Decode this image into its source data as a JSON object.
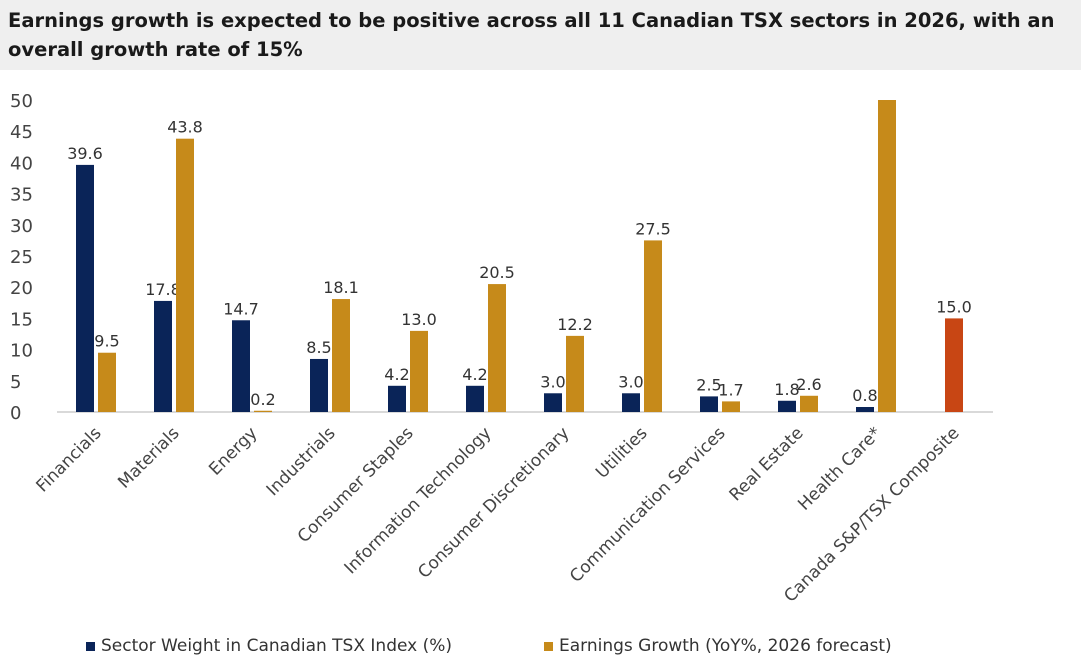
{
  "chart_data": {
    "type": "bar",
    "title": "Earnings growth is expected to be positive across all 11 Canadian TSX sectors in 2026, with an overall growth rate of 15%",
    "categories": [
      "Financials",
      "Materials",
      "Energy",
      "Industrials",
      "Consumer Staples",
      "Information Technology",
      "Consumer Discretionary",
      "Utilities",
      "Communication Services",
      "Real Estate",
      "Health Care*",
      "Canada S&P/TSX Composite"
    ],
    "series": [
      {
        "name": "Sector Weight in Canadian TSX Index (%)",
        "color": "#0a2458",
        "values": [
          39.6,
          17.8,
          14.7,
          8.5,
          4.2,
          4.2,
          3.0,
          3.0,
          2.5,
          1.8,
          0.8,
          null
        ],
        "labels": [
          "39.6",
          "17.8",
          "14.7",
          "8.5",
          "4.2",
          "4.2",
          "3.0",
          "3.0",
          "2.5",
          "1.8",
          "0.8",
          ""
        ]
      },
      {
        "name": "Earnings Growth (YoY%, 2026 forecast)",
        "color": "#c68a1a",
        "highlight_color": "#c84614",
        "values": [
          9.5,
          43.8,
          0.2,
          18.1,
          13.0,
          20.5,
          12.2,
          27.5,
          1.7,
          2.6,
          50,
          15.0
        ],
        "labels": [
          "9.5",
          "43.8",
          "0.2",
          "18.1",
          "13.0",
          "20.5",
          "12.2",
          "27.5",
          "1.7",
          "2.6",
          "",
          "15.0"
        ]
      }
    ],
    "yticks": [
      "0",
      "5",
      "10",
      "15",
      "20",
      "25",
      "30",
      "35",
      "40",
      "45",
      "50"
    ],
    "ylim": [
      0,
      50
    ],
    "grid": false,
    "legend_placement": "bottom"
  }
}
